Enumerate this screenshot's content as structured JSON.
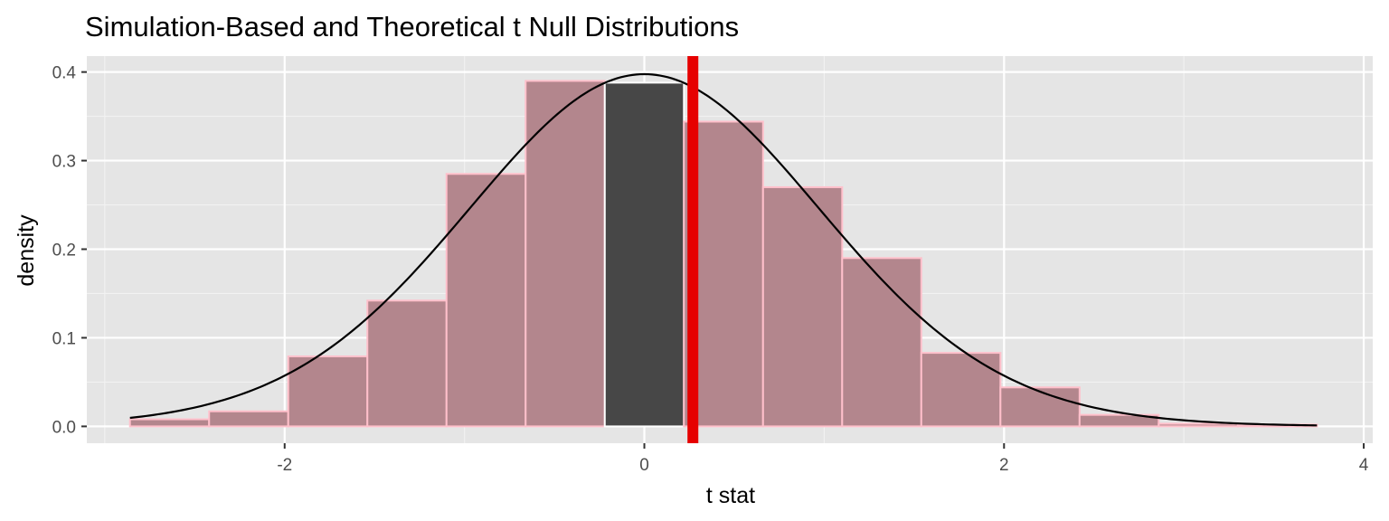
{
  "chart_data": {
    "type": "bar",
    "title": "Simulation-Based and Theoretical t Null Distributions",
    "xlabel": "t stat",
    "ylabel": "density",
    "xlim": [
      -3.1,
      4.05
    ],
    "ylim": [
      -0.019,
      0.418
    ],
    "x_ticks": [
      -2,
      0,
      2,
      4
    ],
    "x_tick_labels": [
      "-2",
      "0",
      "2",
      "4"
    ],
    "y_ticks": [
      0.0,
      0.1,
      0.2,
      0.3,
      0.4
    ],
    "y_tick_labels": [
      "0.0",
      "0.1",
      "0.2",
      "0.3",
      "0.4"
    ],
    "grid": true,
    "bin_edges": [
      -2.86,
      -2.42,
      -1.98,
      -1.54,
      -1.1,
      -0.66,
      -0.22,
      0.22,
      0.66,
      1.1,
      1.54,
      1.98,
      2.42,
      2.86,
      3.3,
      3.74
    ],
    "bin_density": [
      0.008,
      0.017,
      0.079,
      0.142,
      0.285,
      0.39,
      0.388,
      0.344,
      0.27,
      0.19,
      0.083,
      0.044,
      0.013,
      0.003,
      0.002
    ],
    "bin_colors": [
      "#b3868d",
      "#b3868d",
      "#b3868d",
      "#b3868d",
      "#b3868d",
      "#b3868d",
      "#474747",
      "#b3868d",
      "#b3868d",
      "#b3868d",
      "#b3868d",
      "#b3868d",
      "#b3868d",
      "#b3868d",
      "#b3868d"
    ],
    "observed_stat": 0.27,
    "observed_color": "#e60000",
    "theoretical_curve": "t distribution density",
    "curve_color": "#000000",
    "panel_background": "#e5e5e5"
  }
}
